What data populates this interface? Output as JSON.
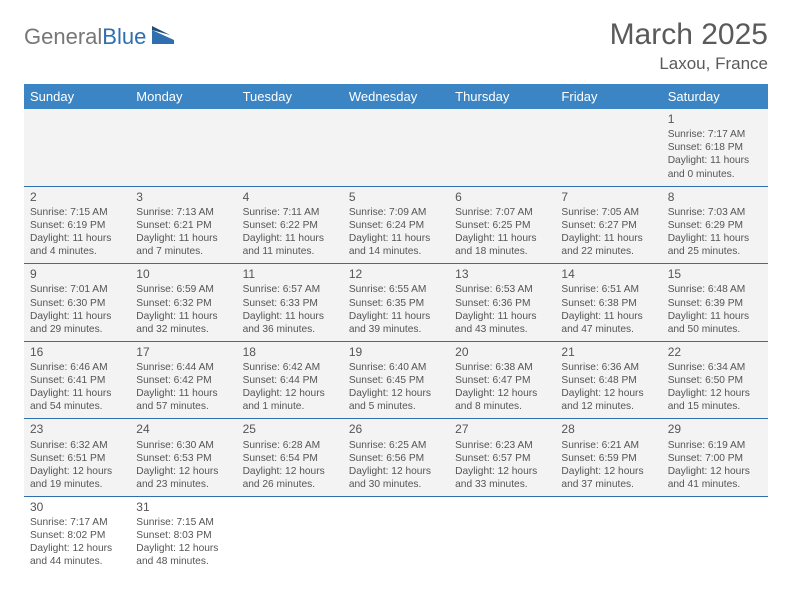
{
  "logo": {
    "text1": "General",
    "text2": "Blue"
  },
  "title": "March 2025",
  "subtitle": "Laxou, France",
  "colors": {
    "header_bg": "#3b85c4",
    "row_bg": "#f3f3f3",
    "border": "#2f6fb0",
    "text": "#555555",
    "logo_gray": "#777777",
    "logo_blue": "#2f6fb0"
  },
  "layout": {
    "columns": 7,
    "font_family": "Arial",
    "cell_font_size": 10.2,
    "header_font_size": 13,
    "title_font_size": 30,
    "subtitle_font_size": 17
  },
  "dayNames": [
    "Sunday",
    "Monday",
    "Tuesday",
    "Wednesday",
    "Thursday",
    "Friday",
    "Saturday"
  ],
  "weeks": [
    [
      null,
      null,
      null,
      null,
      null,
      null,
      {
        "n": "1",
        "sr": "Sunrise: 7:17 AM",
        "ss": "Sunset: 6:18 PM",
        "d1": "Daylight: 11 hours",
        "d2": "and 0 minutes."
      }
    ],
    [
      {
        "n": "2",
        "sr": "Sunrise: 7:15 AM",
        "ss": "Sunset: 6:19 PM",
        "d1": "Daylight: 11 hours",
        "d2": "and 4 minutes."
      },
      {
        "n": "3",
        "sr": "Sunrise: 7:13 AM",
        "ss": "Sunset: 6:21 PM",
        "d1": "Daylight: 11 hours",
        "d2": "and 7 minutes."
      },
      {
        "n": "4",
        "sr": "Sunrise: 7:11 AM",
        "ss": "Sunset: 6:22 PM",
        "d1": "Daylight: 11 hours",
        "d2": "and 11 minutes."
      },
      {
        "n": "5",
        "sr": "Sunrise: 7:09 AM",
        "ss": "Sunset: 6:24 PM",
        "d1": "Daylight: 11 hours",
        "d2": "and 14 minutes."
      },
      {
        "n": "6",
        "sr": "Sunrise: 7:07 AM",
        "ss": "Sunset: 6:25 PM",
        "d1": "Daylight: 11 hours",
        "d2": "and 18 minutes."
      },
      {
        "n": "7",
        "sr": "Sunrise: 7:05 AM",
        "ss": "Sunset: 6:27 PM",
        "d1": "Daylight: 11 hours",
        "d2": "and 22 minutes."
      },
      {
        "n": "8",
        "sr": "Sunrise: 7:03 AM",
        "ss": "Sunset: 6:29 PM",
        "d1": "Daylight: 11 hours",
        "d2": "and 25 minutes."
      }
    ],
    [
      {
        "n": "9",
        "sr": "Sunrise: 7:01 AM",
        "ss": "Sunset: 6:30 PM",
        "d1": "Daylight: 11 hours",
        "d2": "and 29 minutes."
      },
      {
        "n": "10",
        "sr": "Sunrise: 6:59 AM",
        "ss": "Sunset: 6:32 PM",
        "d1": "Daylight: 11 hours",
        "d2": "and 32 minutes."
      },
      {
        "n": "11",
        "sr": "Sunrise: 6:57 AM",
        "ss": "Sunset: 6:33 PM",
        "d1": "Daylight: 11 hours",
        "d2": "and 36 minutes."
      },
      {
        "n": "12",
        "sr": "Sunrise: 6:55 AM",
        "ss": "Sunset: 6:35 PM",
        "d1": "Daylight: 11 hours",
        "d2": "and 39 minutes."
      },
      {
        "n": "13",
        "sr": "Sunrise: 6:53 AM",
        "ss": "Sunset: 6:36 PM",
        "d1": "Daylight: 11 hours",
        "d2": "and 43 minutes."
      },
      {
        "n": "14",
        "sr": "Sunrise: 6:51 AM",
        "ss": "Sunset: 6:38 PM",
        "d1": "Daylight: 11 hours",
        "d2": "and 47 minutes."
      },
      {
        "n": "15",
        "sr": "Sunrise: 6:48 AM",
        "ss": "Sunset: 6:39 PM",
        "d1": "Daylight: 11 hours",
        "d2": "and 50 minutes."
      }
    ],
    [
      {
        "n": "16",
        "sr": "Sunrise: 6:46 AM",
        "ss": "Sunset: 6:41 PM",
        "d1": "Daylight: 11 hours",
        "d2": "and 54 minutes."
      },
      {
        "n": "17",
        "sr": "Sunrise: 6:44 AM",
        "ss": "Sunset: 6:42 PM",
        "d1": "Daylight: 11 hours",
        "d2": "and 57 minutes."
      },
      {
        "n": "18",
        "sr": "Sunrise: 6:42 AM",
        "ss": "Sunset: 6:44 PM",
        "d1": "Daylight: 12 hours",
        "d2": "and 1 minute."
      },
      {
        "n": "19",
        "sr": "Sunrise: 6:40 AM",
        "ss": "Sunset: 6:45 PM",
        "d1": "Daylight: 12 hours",
        "d2": "and 5 minutes."
      },
      {
        "n": "20",
        "sr": "Sunrise: 6:38 AM",
        "ss": "Sunset: 6:47 PM",
        "d1": "Daylight: 12 hours",
        "d2": "and 8 minutes."
      },
      {
        "n": "21",
        "sr": "Sunrise: 6:36 AM",
        "ss": "Sunset: 6:48 PM",
        "d1": "Daylight: 12 hours",
        "d2": "and 12 minutes."
      },
      {
        "n": "22",
        "sr": "Sunrise: 6:34 AM",
        "ss": "Sunset: 6:50 PM",
        "d1": "Daylight: 12 hours",
        "d2": "and 15 minutes."
      }
    ],
    [
      {
        "n": "23",
        "sr": "Sunrise: 6:32 AM",
        "ss": "Sunset: 6:51 PM",
        "d1": "Daylight: 12 hours",
        "d2": "and 19 minutes."
      },
      {
        "n": "24",
        "sr": "Sunrise: 6:30 AM",
        "ss": "Sunset: 6:53 PM",
        "d1": "Daylight: 12 hours",
        "d2": "and 23 minutes."
      },
      {
        "n": "25",
        "sr": "Sunrise: 6:28 AM",
        "ss": "Sunset: 6:54 PM",
        "d1": "Daylight: 12 hours",
        "d2": "and 26 minutes."
      },
      {
        "n": "26",
        "sr": "Sunrise: 6:25 AM",
        "ss": "Sunset: 6:56 PM",
        "d1": "Daylight: 12 hours",
        "d2": "and 30 minutes."
      },
      {
        "n": "27",
        "sr": "Sunrise: 6:23 AM",
        "ss": "Sunset: 6:57 PM",
        "d1": "Daylight: 12 hours",
        "d2": "and 33 minutes."
      },
      {
        "n": "28",
        "sr": "Sunrise: 6:21 AM",
        "ss": "Sunset: 6:59 PM",
        "d1": "Daylight: 12 hours",
        "d2": "and 37 minutes."
      },
      {
        "n": "29",
        "sr": "Sunrise: 6:19 AM",
        "ss": "Sunset: 7:00 PM",
        "d1": "Daylight: 12 hours",
        "d2": "and 41 minutes."
      }
    ],
    [
      {
        "n": "30",
        "sr": "Sunrise: 7:17 AM",
        "ss": "Sunset: 8:02 PM",
        "d1": "Daylight: 12 hours",
        "d2": "and 44 minutes."
      },
      {
        "n": "31",
        "sr": "Sunrise: 7:15 AM",
        "ss": "Sunset: 8:03 PM",
        "d1": "Daylight: 12 hours",
        "d2": "and 48 minutes."
      },
      null,
      null,
      null,
      null,
      null
    ]
  ]
}
